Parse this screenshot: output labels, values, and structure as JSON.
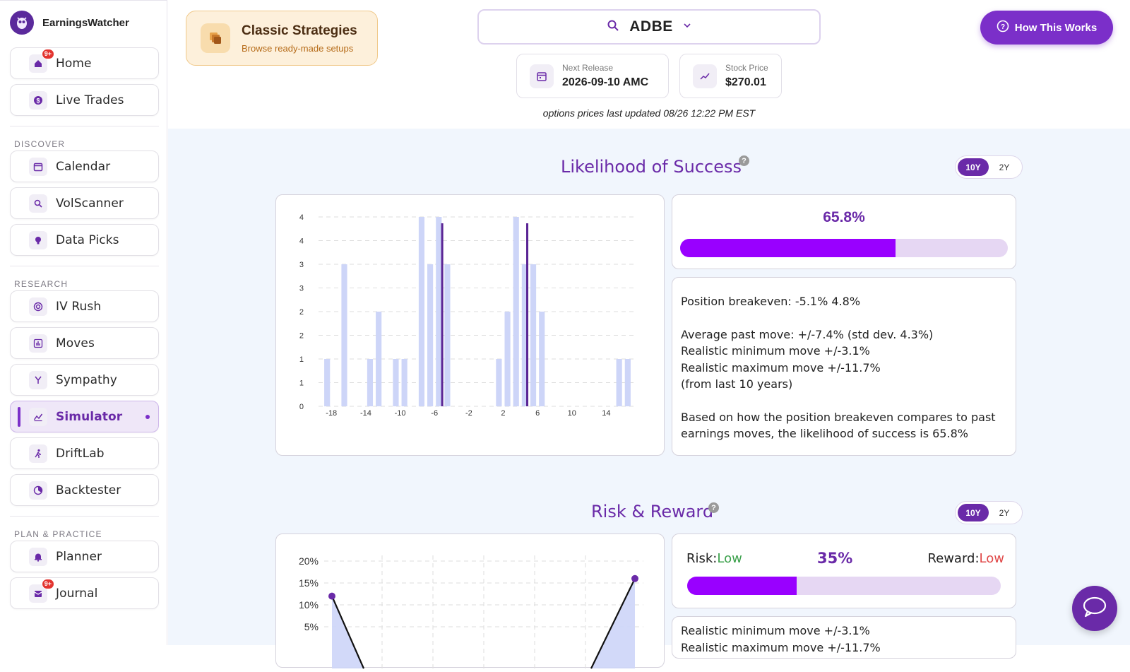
{
  "brand": {
    "name": "EarningsWatcher"
  },
  "sidebar": {
    "top_items": [
      {
        "label": "Home",
        "badge": "9+"
      },
      {
        "label": "Live Trades"
      }
    ],
    "discover_label": "DISCOVER",
    "discover_items": [
      {
        "label": "Calendar"
      },
      {
        "label": "VolScanner"
      },
      {
        "label": "Data Picks"
      }
    ],
    "research_label": "RESEARCH",
    "research_items": [
      {
        "label": "IV Rush"
      },
      {
        "label": "Moves"
      },
      {
        "label": "Sympathy"
      },
      {
        "label": "Simulator",
        "active": true
      },
      {
        "label": "DriftLab"
      },
      {
        "label": "Backtester"
      }
    ],
    "plan_label": "PLAN & PRACTICE",
    "plan_items": [
      {
        "label": "Planner"
      },
      {
        "label": "Journal",
        "badge": "9+"
      }
    ]
  },
  "classic": {
    "title": "Classic Strategies",
    "subtitle": "Browse ready-made setups"
  },
  "ticker": {
    "symbol": "ADBE"
  },
  "next_release": {
    "label": "Next Release",
    "value": "2026-09-10 AMC"
  },
  "stock_price": {
    "label": "Stock Price",
    "value": "$270.01"
  },
  "updated_text": "options prices last updated 08/26 12:22 PM EST",
  "how_button": "How This Works",
  "likelihood": {
    "title": "Likelihood of Success",
    "toggle": [
      "10Y",
      "2Y"
    ],
    "percent_label": "65.8%",
    "percent_value": 0.658,
    "stats": {
      "breakeven": "Position breakeven: -5.1%  4.8%",
      "avg_move": "Average past move: +/-7.4% (std dev. 4.3%)",
      "min_move": "Realistic minimum move +/-3.1%",
      "max_move": "Realistic maximum move +/-11.7%",
      "period": "(from last 10 years)",
      "summary1": "Based on how the position breakeven compares to past",
      "summary2": "earnings moves, the likelihood of success is 65.8%"
    }
  },
  "risk_reward": {
    "title": "Risk & Reward",
    "toggle": [
      "10Y",
      "2Y"
    ],
    "risk_label": "Risk:",
    "risk_value": "Low",
    "reward_label": "Reward:",
    "reward_value": "Low",
    "percent_label": "35%",
    "percent_value": 0.35,
    "min_move": "Realistic minimum move +/-3.1%",
    "max_move": "Realistic maximum move +/-11.7%"
  },
  "colors": {
    "accent": "#6a2aa8",
    "bar_fill": "#9900ff",
    "hist_bar": "#cdd5f8",
    "breakeven_line": "#5a2494",
    "low_risk": "#3aa04a",
    "low_reward": "#e04848"
  },
  "chart_data": [
    {
      "type": "bar",
      "title": "",
      "x_ticks": [
        "-18",
        "-14",
        "-10",
        "-6",
        "-2",
        "2",
        "6",
        "10",
        "14"
      ],
      "y_ticks": [
        "0",
        "1",
        "1",
        "2",
        "2",
        "3",
        "3",
        "4",
        "4"
      ],
      "ylim": [
        0,
        4
      ],
      "bars": [
        {
          "x": -18.5,
          "y": 1
        },
        {
          "x": -16.5,
          "y": 3
        },
        {
          "x": -13.5,
          "y": 1
        },
        {
          "x": -12.5,
          "y": 2
        },
        {
          "x": -10.5,
          "y": 1
        },
        {
          "x": -9.5,
          "y": 1
        },
        {
          "x": -7.5,
          "y": 4
        },
        {
          "x": -6.5,
          "y": 3
        },
        {
          "x": -5.5,
          "y": 4
        },
        {
          "x": -4.5,
          "y": 3
        },
        {
          "x": 1.5,
          "y": 1
        },
        {
          "x": 2.5,
          "y": 2
        },
        {
          "x": 3.5,
          "y": 4
        },
        {
          "x": 4.5,
          "y": 3
        },
        {
          "x": 5.5,
          "y": 3
        },
        {
          "x": 6.5,
          "y": 2
        },
        {
          "x": 15.5,
          "y": 1
        },
        {
          "x": 16.5,
          "y": 1
        }
      ],
      "breakeven_lines": [
        -5.1,
        4.8
      ]
    },
    {
      "type": "line",
      "title": "",
      "y_ticks": [
        "20%",
        "15%",
        "10%",
        "5%"
      ],
      "ylim": [
        0,
        20
      ],
      "points_visible": [
        {
          "x": -18,
          "y": 12
        },
        {
          "x": 18,
          "y": 16
        }
      ]
    }
  ]
}
